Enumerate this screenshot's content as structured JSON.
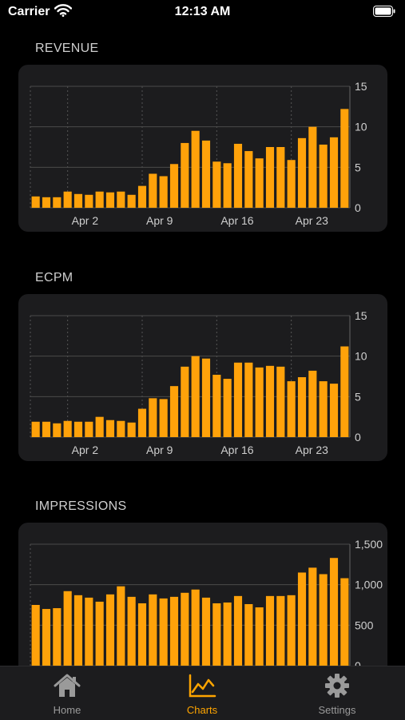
{
  "status_bar": {
    "carrier": "Carrier",
    "time": "12:13 AM"
  },
  "colors": {
    "bar": "#FFA20A",
    "card": "#1c1c1e",
    "accent": "#FFA500",
    "inactive": "#9a9a9a"
  },
  "charts": [
    {
      "title": "REVENUE",
      "chart_data": {
        "type": "bar",
        "x_tick_labels": [
          "Apr 2",
          "Apr 9",
          "Apr 16",
          "Apr 23"
        ],
        "x_tick_indices": [
          3,
          10,
          17,
          24
        ],
        "ylim": [
          0,
          15
        ],
        "y_tick_values": [
          0,
          5,
          10,
          15
        ],
        "y_tick_labels": [
          "0",
          "5",
          "10",
          "15"
        ],
        "values": [
          1.4,
          1.3,
          1.3,
          2.0,
          1.7,
          1.6,
          2.0,
          1.9,
          2.0,
          1.6,
          2.7,
          4.2,
          3.9,
          5.4,
          8.0,
          9.5,
          8.3,
          5.7,
          5.5,
          7.9,
          7.0,
          6.1,
          7.5,
          7.5,
          5.9,
          8.6,
          10.0,
          7.8,
          8.7,
          12.2
        ],
        "grid": true
      }
    },
    {
      "title": "ECPM",
      "chart_data": {
        "type": "bar",
        "x_tick_labels": [
          "Apr 2",
          "Apr 9",
          "Apr 16",
          "Apr 23"
        ],
        "x_tick_indices": [
          3,
          10,
          17,
          24
        ],
        "ylim": [
          0,
          15
        ],
        "y_tick_values": [
          0,
          5,
          10,
          15
        ],
        "y_tick_labels": [
          "0",
          "5",
          "10",
          "15"
        ],
        "values": [
          1.9,
          1.9,
          1.7,
          2.0,
          1.9,
          1.9,
          2.5,
          2.1,
          2.0,
          1.8,
          3.5,
          4.8,
          4.7,
          6.3,
          8.7,
          10.0,
          9.7,
          7.7,
          7.2,
          9.2,
          9.2,
          8.6,
          8.8,
          8.7,
          6.9,
          7.4,
          8.2,
          6.9,
          6.6,
          11.2
        ],
        "grid": true
      }
    },
    {
      "title": "IMPRESSIONS",
      "chart_data": {
        "type": "bar",
        "ylim": [
          0,
          1500
        ],
        "y_tick_values": [
          0,
          500,
          1000,
          1500
        ],
        "y_tick_labels": [
          "0",
          "500",
          "1,000",
          "1,500"
        ],
        "values": [
          750,
          700,
          710,
          920,
          870,
          840,
          790,
          880,
          980,
          850,
          770,
          880,
          830,
          850,
          900,
          940,
          840,
          770,
          780,
          860,
          760,
          720,
          860,
          860,
          870,
          1150,
          1210,
          1130,
          1330,
          1080
        ],
        "grid": true
      }
    }
  ],
  "tab_bar": {
    "items": [
      {
        "label": "Home",
        "icon": "house-icon"
      },
      {
        "label": "Charts",
        "icon": "chart-line-icon"
      },
      {
        "label": "Settings",
        "icon": "gear-icon"
      }
    ],
    "selected": "Charts"
  }
}
